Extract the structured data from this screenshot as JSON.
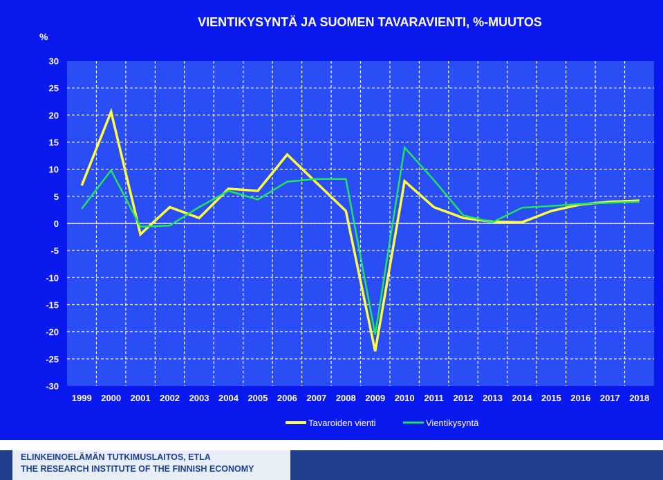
{
  "chart_data": {
    "type": "line",
    "title": "VIENTIKYSYNTÄ JA SUOMEN TAVARAVIENTI, %-MUUTOS",
    "ylabel": "%",
    "xlabel": "",
    "ylim": [
      -30,
      30
    ],
    "yticks": [
      30,
      25,
      20,
      15,
      10,
      5,
      0,
      -5,
      -10,
      -15,
      -20,
      -25,
      -30
    ],
    "categories": [
      "1999",
      "2000",
      "2001",
      "2002",
      "2003",
      "2004",
      "2005",
      "2006",
      "2007",
      "2008",
      "2009",
      "2010",
      "2011",
      "2012",
      "2013",
      "2014",
      "2015",
      "2016",
      "2017",
      "2018"
    ],
    "grid": true,
    "legend_position": "bottom",
    "series": [
      {
        "name": "Tavaroiden vienti",
        "color": "#ffff3c",
        "values": [
          7.0,
          20.6,
          -2.0,
          3.0,
          1.0,
          6.4,
          6.0,
          12.7,
          7.5,
          2.3,
          -23.6,
          7.8,
          3.0,
          1.0,
          0.3,
          0.2,
          2.3,
          3.5,
          4.0,
          4.2
        ]
      },
      {
        "name": "Vientikysyntä",
        "color": "#1ee65a",
        "values": [
          2.7,
          9.8,
          -0.6,
          -0.4,
          3.0,
          6.0,
          4.4,
          7.7,
          8.2,
          8.2,
          -20.5,
          14.0,
          8.0,
          1.5,
          0.2,
          2.9,
          3.2,
          3.6,
          3.8,
          4.0
        ]
      }
    ]
  },
  "footer": {
    "line1": "ELINKEINOELÄMÄN TUTKIMUSLAITOS, ETLA",
    "line2": "THE RESEARCH INSTITUTE OF THE FINNISH ECONOMY"
  },
  "colors": {
    "background": "#0a19ee",
    "plot_area": "#2a4df5",
    "footer_blue": "#1f3f8c"
  }
}
